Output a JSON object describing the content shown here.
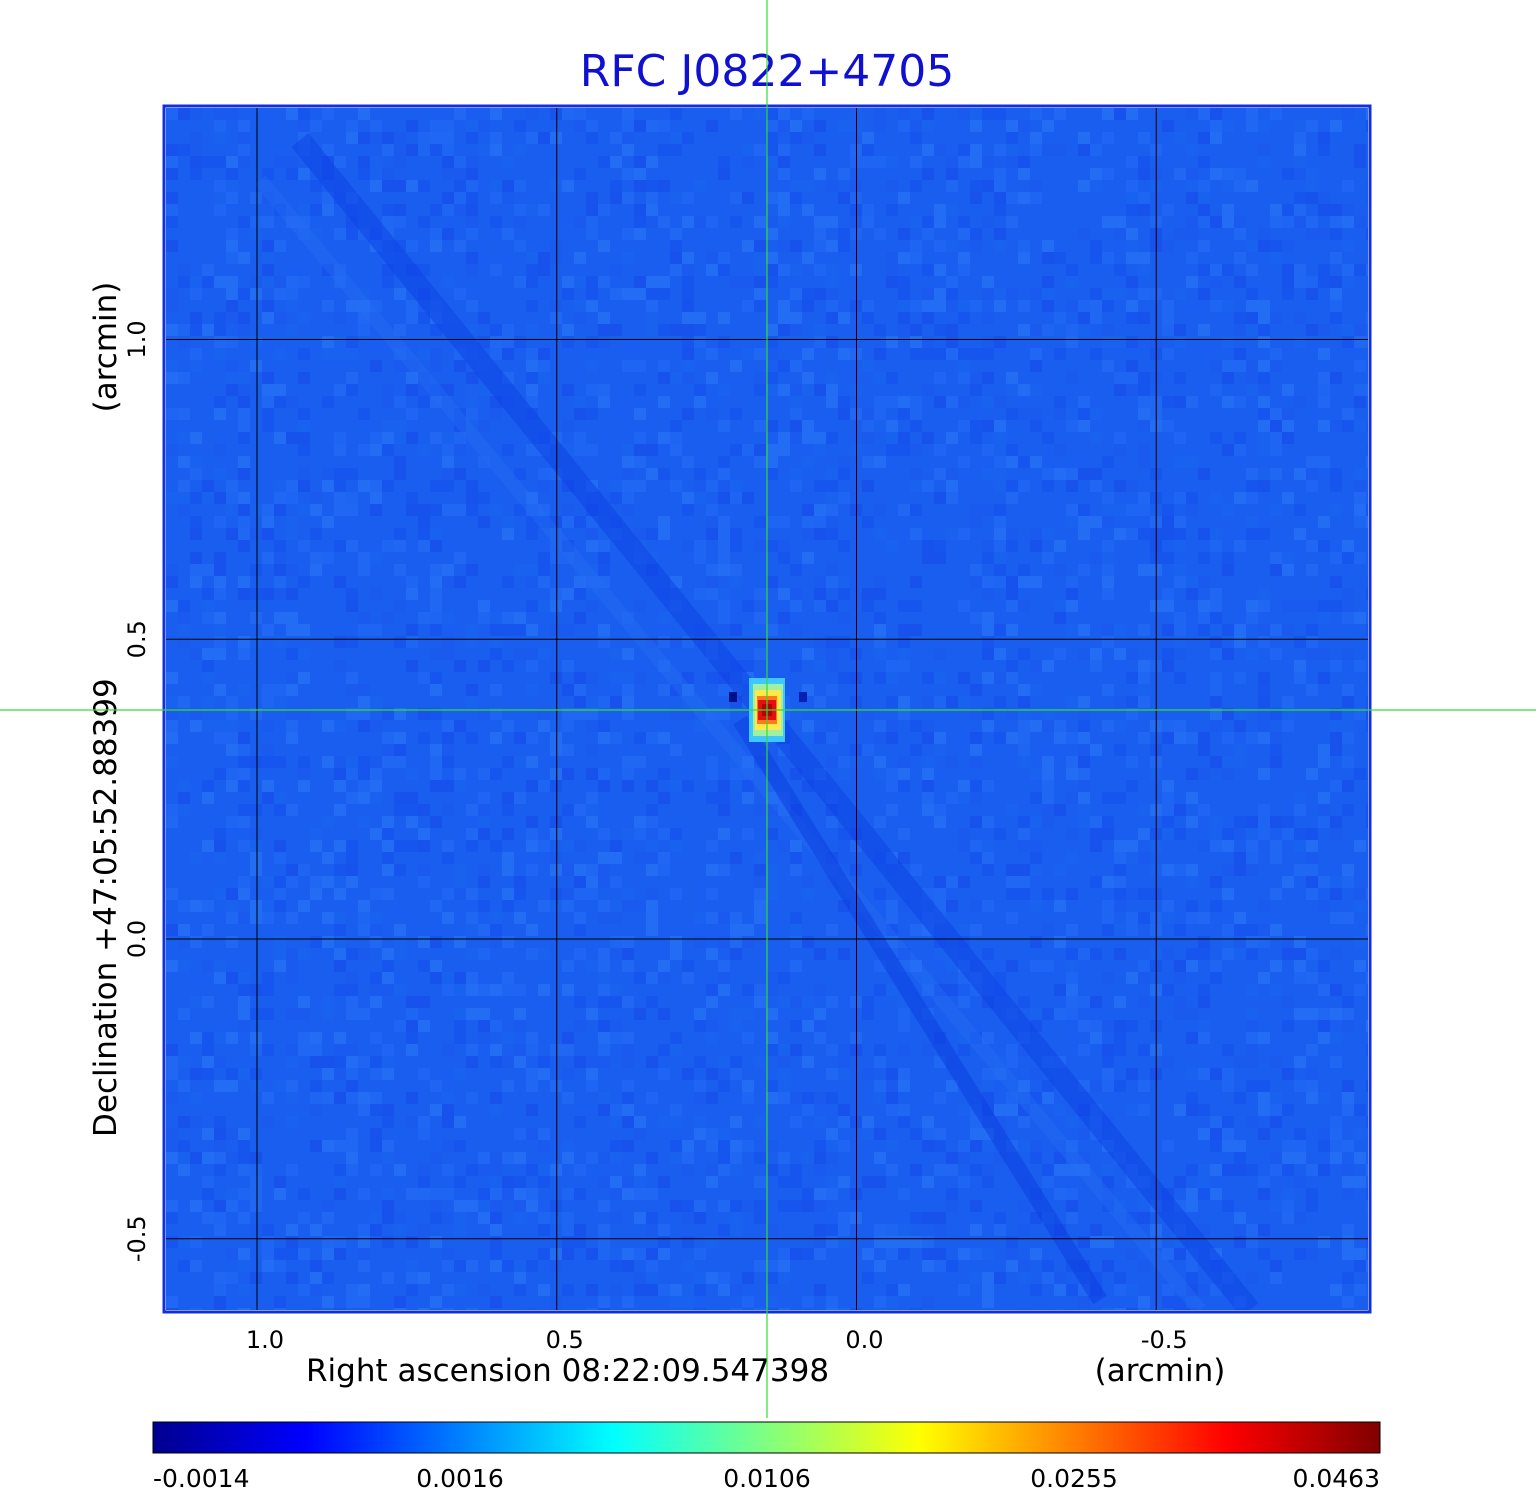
{
  "title": "RFC J0822+4705",
  "x_axis": {
    "label": "Right ascension  08:22:09.547398",
    "unit": "(arcmin)",
    "ticks": [
      "1.0",
      "0.5",
      "0.0",
      "-0.5"
    ],
    "tick_values": [
      1.0,
      0.5,
      0.0,
      -0.5
    ]
  },
  "y_axis": {
    "label": "Declination  +47:05:52.88399",
    "unit": "(arcmin)",
    "ticks": [
      "1.0",
      "0.5",
      "0.0",
      "-0.5"
    ],
    "tick_values": [
      1.0,
      0.5,
      0.0,
      -0.5
    ]
  },
  "colorbar": {
    "colormap": "jet",
    "ticks": [
      "-0.0014",
      "0.0016",
      "0.0106",
      "0.0255",
      "0.0463"
    ],
    "tick_values": [
      -0.0014,
      0.0016,
      0.0106,
      0.0255,
      0.0463
    ]
  },
  "colors": {
    "title": "#1010d0",
    "frame": "#1030e0",
    "background_map": "#1a5ef0",
    "crosshair": "#33dd33",
    "grid": "#000000"
  },
  "source": {
    "ra_offset_arcmin": 0.15,
    "dec_offset_arcmin": 0.38
  }
}
